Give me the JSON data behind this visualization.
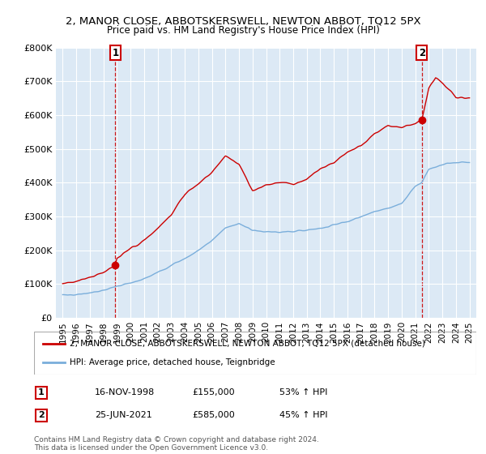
{
  "title": "2, MANOR CLOSE, ABBOTSKERSWELL, NEWTON ABBOT, TQ12 5PX",
  "subtitle": "Price paid vs. HM Land Registry's House Price Index (HPI)",
  "legend_line1": "2, MANOR CLOSE, ABBOTSKERSWELL, NEWTON ABBOT, TQ12 5PX (detached house)",
  "legend_line2": "HPI: Average price, detached house, Teignbridge",
  "annotation1_label": "1",
  "annotation1_date": "16-NOV-1998",
  "annotation1_price": "£155,000",
  "annotation1_hpi": "53% ↑ HPI",
  "annotation2_label": "2",
  "annotation2_date": "25-JUN-2021",
  "annotation2_price": "£585,000",
  "annotation2_hpi": "45% ↑ HPI",
  "footer": "Contains HM Land Registry data © Crown copyright and database right 2024.\nThis data is licensed under the Open Government Licence v3.0.",
  "sale1_x": 1998.88,
  "sale1_y": 155000,
  "sale2_x": 2021.48,
  "sale2_y": 585000,
  "red_color": "#cc0000",
  "blue_color": "#7aaedb",
  "plot_bg_color": "#dce9f5",
  "annotation_box_color": "#cc0000",
  "ylim": [
    0,
    800000
  ],
  "xlim_start": 1994.5,
  "xlim_end": 2025.5,
  "blue_anchors_x": [
    1995,
    1996,
    1997,
    1998,
    1999,
    2000,
    2001,
    2002,
    2003,
    2004,
    2005,
    2006,
    2007,
    2008,
    2009,
    2010,
    2011,
    2012,
    2013,
    2014,
    2015,
    2016,
    2017,
    2018,
    2019,
    2020,
    2021,
    2021.48,
    2022,
    2023,
    2024,
    2025
  ],
  "blue_anchors_y": [
    65000,
    68000,
    75000,
    82000,
    92000,
    102000,
    115000,
    135000,
    155000,
    175000,
    200000,
    230000,
    265000,
    280000,
    260000,
    255000,
    255000,
    255000,
    260000,
    265000,
    275000,
    285000,
    300000,
    315000,
    325000,
    340000,
    390000,
    400000,
    440000,
    455000,
    460000,
    460000
  ],
  "red_anchors_x": [
    1995,
    1996,
    1997,
    1998,
    1998.88,
    1999,
    2000,
    2001,
    2002,
    2003,
    2004,
    2005,
    2006,
    2007,
    2008,
    2009,
    2010,
    2011,
    2012,
    2013,
    2014,
    2015,
    2016,
    2017,
    2018,
    2019,
    2020,
    2021,
    2021.48,
    2022,
    2022.5,
    2023,
    2024,
    2025
  ],
  "red_anchors_y": [
    103000,
    108000,
    120000,
    135000,
    155000,
    175000,
    205000,
    230000,
    265000,
    305000,
    365000,
    395000,
    430000,
    480000,
    455000,
    375000,
    395000,
    400000,
    395000,
    410000,
    440000,
    460000,
    490000,
    510000,
    545000,
    570000,
    565000,
    575000,
    585000,
    680000,
    710000,
    695000,
    655000,
    650000
  ]
}
